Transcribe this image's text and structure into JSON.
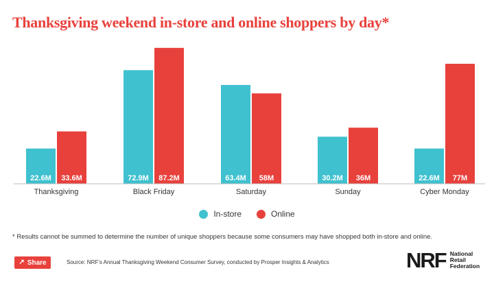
{
  "title": "Thanksgiving weekend in-store and online shoppers by day*",
  "footnote": "* Results cannot be summed to determine the number of unique shoppers because some consumers may have shopped both in-store and online.",
  "share_label": "Share",
  "share_icon": "share-icon",
  "source": "Source: NRF’s Annual Thanksgiving Weekend Consumer Survey, conducted by Prosper Insights & Analytics",
  "logo": {
    "mark": "NRF",
    "text": "National Retail Federation"
  },
  "colors": {
    "instore": "#3fc1cf",
    "online": "#e8413c",
    "title": "#e8413c"
  },
  "chart_data": {
    "type": "bar",
    "title": "Thanksgiving weekend in-store and online shoppers by day*",
    "xlabel": "",
    "ylabel": "",
    "ylim": [
      0,
      88
    ],
    "grid": false,
    "legend_position": "bottom-center",
    "categories": [
      "Thanksgiving",
      "Black Friday",
      "Saturday",
      "Sunday",
      "Cyber Monday"
    ],
    "series": [
      {
        "name": "In-store",
        "values": [
          22.6,
          72.9,
          63.4,
          30.2,
          22.6
        ],
        "labels": [
          "22.6M",
          "72.9M",
          "63.4M",
          "30.2M",
          "22.6M"
        ]
      },
      {
        "name": "Online",
        "values": [
          33.6,
          87.2,
          58,
          36,
          77
        ],
        "labels": [
          "33.6M",
          "87.2M",
          "58M",
          "36M",
          "77M"
        ]
      }
    ]
  }
}
